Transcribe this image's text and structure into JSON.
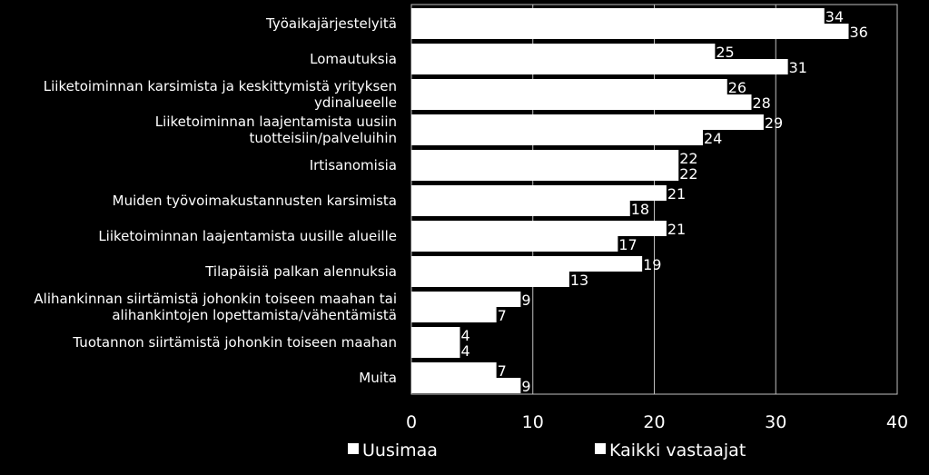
{
  "chart_data": {
    "type": "bar",
    "orientation": "horizontal",
    "categories": [
      [
        "Työaikajärjestelyitä"
      ],
      [
        "Lomautuksia"
      ],
      [
        "Liiketoiminnan karsimista ja keskittymistä yrityksen",
        "ydinalueelle"
      ],
      [
        "Liiketoiminnan laajentamista uusiin",
        "tuotteisiin/palveluihin"
      ],
      [
        "Irtisanomisia"
      ],
      [
        "Muiden työvoimakustannusten karsimista"
      ],
      [
        "Liiketoiminnan laajentamista uusille alueille"
      ],
      [
        "Tilapäisiä palkan alennuksia"
      ],
      [
        "Alihankinnan siirtämistä johonkin toiseen maahan tai",
        "alihankintojen lopettamista/vähentämistä"
      ],
      [
        "Tuotannon siirtämistä johonkin toiseen maahan"
      ],
      [
        "Muita"
      ]
    ],
    "series": [
      {
        "name": "Uusimaa",
        "color": "#ffffff",
        "values": [
          34,
          25,
          26,
          29,
          22,
          21,
          21,
          19,
          9,
          4,
          7
        ]
      },
      {
        "name": "Kaikki vastaajat",
        "color": "#ffffff",
        "values": [
          36,
          31,
          28,
          24,
          22,
          18,
          17,
          13,
          7,
          4,
          9
        ]
      }
    ],
    "xlim": [
      0,
      40
    ],
    "xticks": [
      0,
      10,
      20,
      30,
      40
    ],
    "grid": true,
    "legend_position": "bottom"
  }
}
